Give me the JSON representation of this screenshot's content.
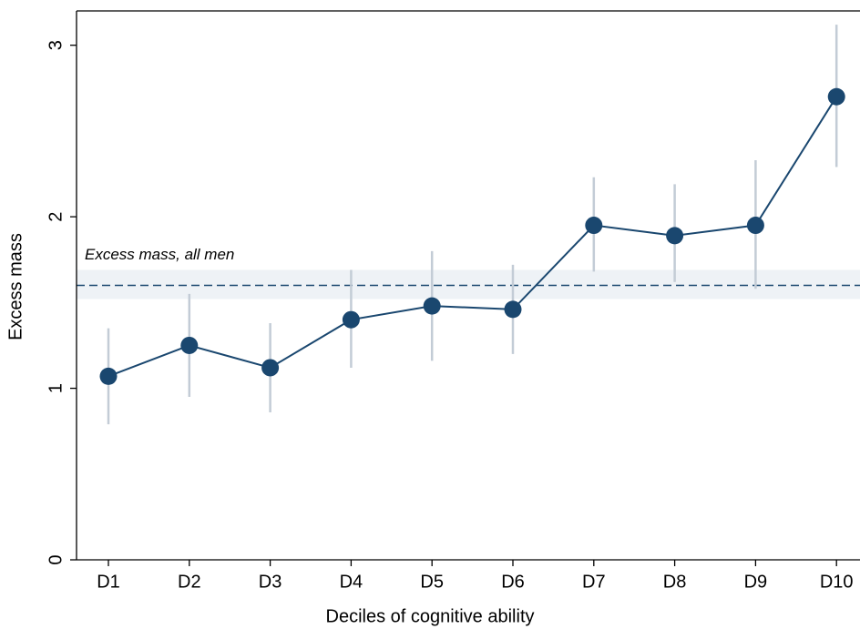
{
  "chart_data": {
    "type": "line",
    "x_label": "Deciles of cognitive ability",
    "y_label": "Excess mass",
    "categories": [
      "D1",
      "D2",
      "D3",
      "D4",
      "D5",
      "D6",
      "D7",
      "D8",
      "D9",
      "D10"
    ],
    "series": [
      {
        "color": "#1a476f",
        "values": [
          1.07,
          1.25,
          1.12,
          1.4,
          1.48,
          1.46,
          1.95,
          1.89,
          1.95,
          2.7
        ],
        "lower": [
          0.79,
          0.95,
          0.86,
          1.12,
          1.16,
          1.2,
          1.68,
          1.62,
          1.58,
          2.29
        ],
        "upper": [
          1.35,
          1.55,
          1.38,
          1.69,
          1.8,
          1.72,
          2.23,
          2.19,
          2.33,
          3.12
        ],
        "ci_color": "#c3ccd6"
      }
    ],
    "reference": {
      "label": "Excess mass, all men",
      "value": 1.6,
      "lower": 1.52,
      "upper": 1.69,
      "color": "#1a476f",
      "band_color": "#eef2f6"
    },
    "ylim": [
      0,
      3.2
    ],
    "yticks": [
      0,
      1,
      2,
      3
    ]
  }
}
